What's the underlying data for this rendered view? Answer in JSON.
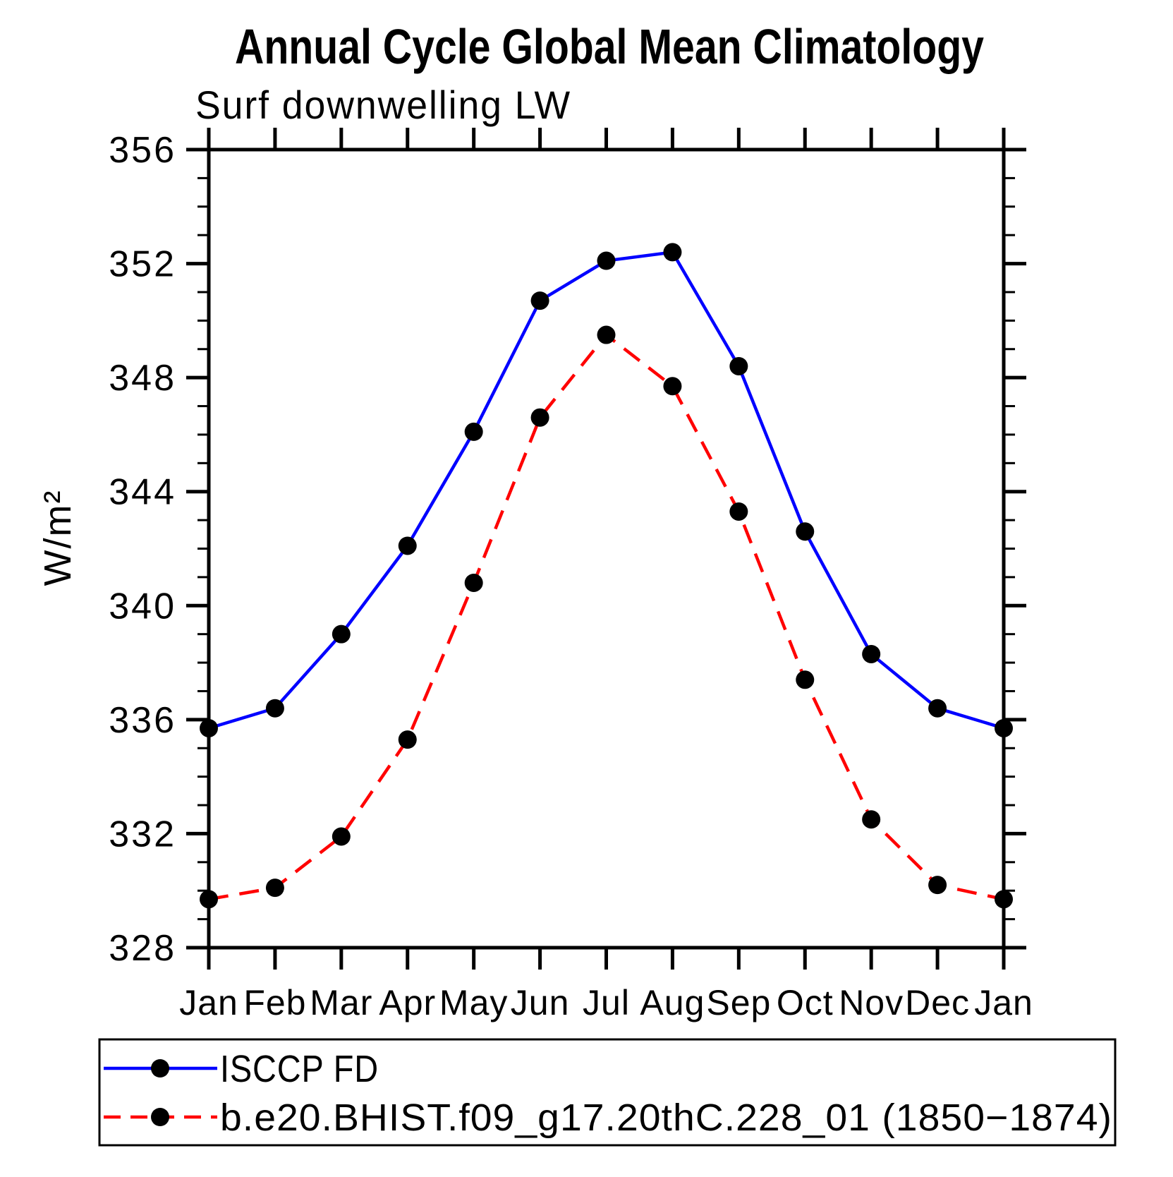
{
  "chart_data": {
    "type": "line",
    "title": "Annual Cycle Global Mean Climatology",
    "subtitle": "Surf downwelling LW",
    "xlabel": "",
    "ylabel": "W/m²",
    "ylim": [
      328,
      356
    ],
    "ytick_major_step": 4,
    "ytick_minor_step": 1,
    "ytick_labels": [
      "328",
      "332",
      "336",
      "340",
      "344",
      "348",
      "352",
      "356"
    ],
    "grid": false,
    "legend_position": "bottom-box",
    "categories": [
      "Jan",
      "Feb",
      "Mar",
      "Apr",
      "May",
      "Jun",
      "Jul",
      "Aug",
      "Sep",
      "Oct",
      "Nov",
      "Dec",
      "Jan"
    ],
    "series": [
      {
        "name": "ISCCP FD",
        "color": "#0000ff",
        "line_style": "solid",
        "marker": "circle",
        "marker_color": "#000000",
        "values": [
          335.7,
          336.4,
          339.0,
          342.1,
          346.1,
          350.7,
          352.1,
          352.4,
          348.4,
          342.6,
          338.3,
          336.4,
          335.7
        ]
      },
      {
        "name": "b.e20.BHIST.f09_g17.20thC.228_01 (1850−1874)",
        "color": "#ff0000",
        "line_style": "dashed",
        "marker": "circle",
        "marker_color": "#000000",
        "values": [
          329.7,
          330.1,
          331.9,
          335.3,
          340.8,
          346.6,
          349.5,
          347.7,
          343.3,
          337.4,
          332.5,
          330.2,
          329.7
        ]
      }
    ]
  }
}
